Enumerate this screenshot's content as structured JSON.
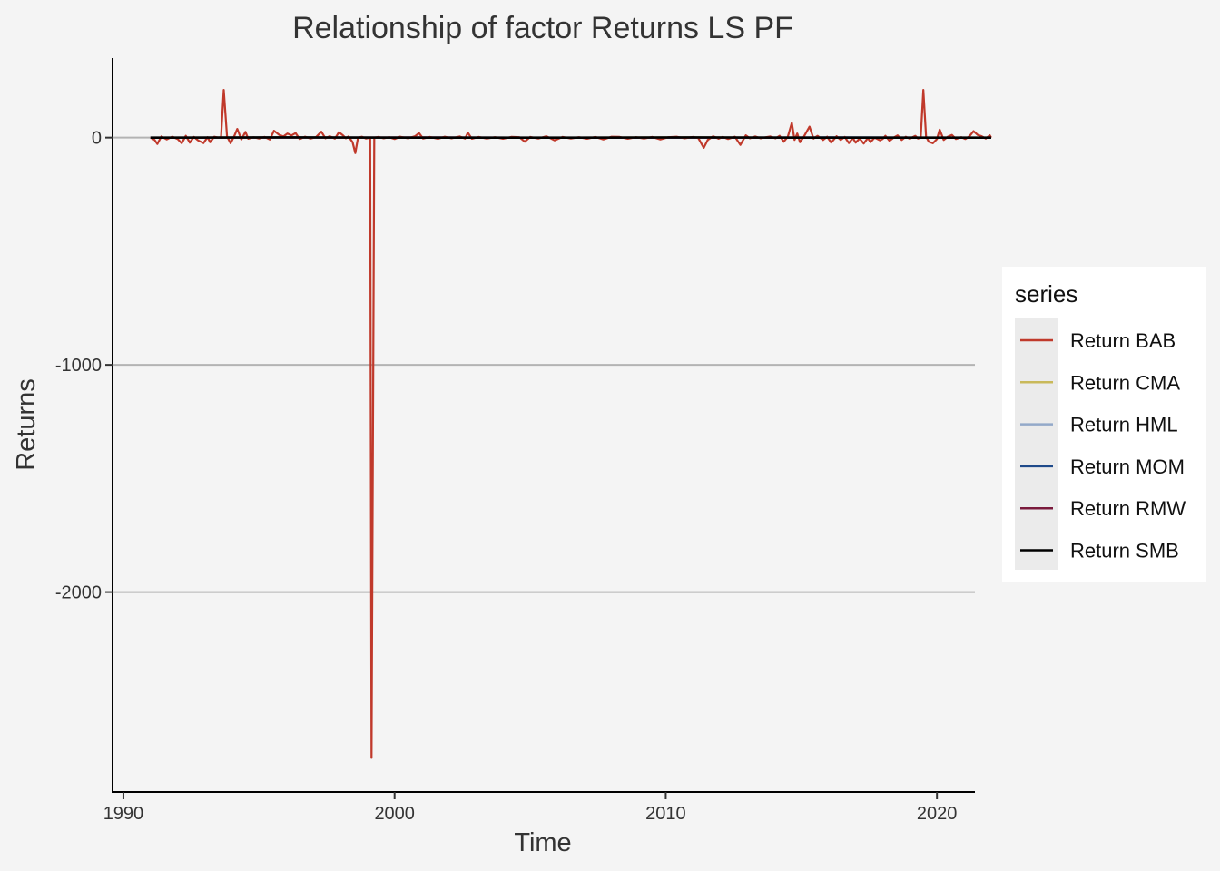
{
  "chart_data": {
    "type": "line",
    "title": "Relationship of factor Returns LS PF",
    "xlabel": "Time",
    "ylabel": "Returns",
    "xlim": [
      1989.6,
      2021.4
    ],
    "ylim": [
      -2880,
      350
    ],
    "x_ticks": [
      1990,
      2000,
      2010,
      2020
    ],
    "x_tick_labels": [
      "1990",
      "2000",
      "2010",
      "2020"
    ],
    "y_ticks": [
      0,
      -1000,
      -2000
    ],
    "y_tick_labels": [
      "0",
      "-1000",
      "-2000"
    ],
    "grid": "horizontal major",
    "legend": {
      "title": "series",
      "position": "right",
      "entries": [
        {
          "label": "Return BAB",
          "color": "#c0392b"
        },
        {
          "label": "Return CMA",
          "color": "#c9b95a"
        },
        {
          "label": "Return HML",
          "color": "#93a9c9"
        },
        {
          "label": "Return MOM",
          "color": "#1f4a8a"
        },
        {
          "label": "Return RMW",
          "color": "#7a1a3c"
        },
        {
          "label": "Return SMB",
          "color": "#000000"
        }
      ]
    },
    "series": [
      {
        "name": "Return BAB",
        "color": "#c0392b",
        "points": [
          [
            1991.0,
            0
          ],
          [
            1991.15,
            -10
          ],
          [
            1991.25,
            -28
          ],
          [
            1991.4,
            5
          ],
          [
            1991.6,
            -8
          ],
          [
            1991.8,
            4
          ],
          [
            1992.0,
            -6
          ],
          [
            1992.15,
            -25
          ],
          [
            1992.3,
            8
          ],
          [
            1992.45,
            -22
          ],
          [
            1992.6,
            3
          ],
          [
            1992.75,
            -12
          ],
          [
            1992.95,
            -24
          ],
          [
            1993.1,
            2
          ],
          [
            1993.2,
            -20
          ],
          [
            1993.35,
            4
          ],
          [
            1993.5,
            0
          ],
          [
            1993.6,
            2
          ],
          [
            1993.7,
            210
          ],
          [
            1993.82,
            5
          ],
          [
            1993.95,
            -25
          ],
          [
            1994.1,
            10
          ],
          [
            1994.2,
            38
          ],
          [
            1994.35,
            -8
          ],
          [
            1994.5,
            25
          ],
          [
            1994.6,
            -5
          ],
          [
            1994.8,
            2
          ],
          [
            1995.0,
            -4
          ],
          [
            1995.2,
            3
          ],
          [
            1995.4,
            -8
          ],
          [
            1995.55,
            30
          ],
          [
            1995.75,
            12
          ],
          [
            1995.9,
            5
          ],
          [
            1996.05,
            18
          ],
          [
            1996.2,
            10
          ],
          [
            1996.35,
            20
          ],
          [
            1996.5,
            -6
          ],
          [
            1996.7,
            4
          ],
          [
            1996.9,
            -4
          ],
          [
            1997.1,
            2
          ],
          [
            1997.3,
            26
          ],
          [
            1997.45,
            -3
          ],
          [
            1997.6,
            6
          ],
          [
            1997.8,
            -4
          ],
          [
            1997.95,
            24
          ],
          [
            1998.1,
            10
          ],
          [
            1998.2,
            -3
          ],
          [
            1998.3,
            5
          ],
          [
            1998.45,
            -20
          ],
          [
            1998.55,
            -68
          ],
          [
            1998.65,
            0
          ],
          [
            1998.8,
            4
          ],
          [
            1998.95,
            -4
          ],
          [
            1999.1,
            0
          ],
          [
            1999.15,
            -2730
          ],
          [
            1999.25,
            0
          ],
          [
            1999.4,
            3
          ],
          [
            1999.6,
            -3
          ],
          [
            1999.8,
            2
          ],
          [
            2000.0,
            -6
          ],
          [
            2000.2,
            4
          ],
          [
            2000.5,
            -3
          ],
          [
            2000.75,
            6
          ],
          [
            2000.9,
            20
          ],
          [
            2001.05,
            -4
          ],
          [
            2001.3,
            3
          ],
          [
            2001.6,
            -5
          ],
          [
            2001.85,
            4
          ],
          [
            2002.1,
            -3
          ],
          [
            2002.4,
            5
          ],
          [
            2002.6,
            -4
          ],
          [
            2002.7,
            22
          ],
          [
            2002.85,
            -5
          ],
          [
            2003.1,
            3
          ],
          [
            2003.4,
            -4
          ],
          [
            2003.7,
            2
          ],
          [
            2004.0,
            -5
          ],
          [
            2004.3,
            3
          ],
          [
            2004.6,
            2
          ],
          [
            2004.8,
            -18
          ],
          [
            2005.0,
            3
          ],
          [
            2005.3,
            -4
          ],
          [
            2005.6,
            6
          ],
          [
            2005.9,
            -12
          ],
          [
            2006.2,
            3
          ],
          [
            2006.5,
            -4
          ],
          [
            2006.8,
            2
          ],
          [
            2007.1,
            -5
          ],
          [
            2007.4,
            3
          ],
          [
            2007.7,
            -8
          ],
          [
            2008.0,
            4
          ],
          [
            2008.3,
            3
          ],
          [
            2008.6,
            -5
          ],
          [
            2008.9,
            2
          ],
          [
            2009.2,
            -4
          ],
          [
            2009.5,
            3
          ],
          [
            2009.8,
            -8
          ],
          [
            2010.1,
            2
          ],
          [
            2010.4,
            4
          ],
          [
            2010.7,
            -3
          ],
          [
            2011.0,
            3
          ],
          [
            2011.2,
            -2
          ],
          [
            2011.4,
            -45
          ],
          [
            2011.55,
            -10
          ],
          [
            2011.75,
            6
          ],
          [
            2011.95,
            -5
          ],
          [
            2012.1,
            3
          ],
          [
            2012.3,
            -6
          ],
          [
            2012.55,
            4
          ],
          [
            2012.75,
            -32
          ],
          [
            2012.95,
            10
          ],
          [
            2013.1,
            -3
          ],
          [
            2013.3,
            5
          ],
          [
            2013.5,
            -3
          ],
          [
            2013.7,
            2
          ],
          [
            2013.85,
            5
          ],
          [
            2014.05,
            -3
          ],
          [
            2014.2,
            8
          ],
          [
            2014.35,
            -18
          ],
          [
            2014.5,
            4
          ],
          [
            2014.65,
            65
          ],
          [
            2014.75,
            -10
          ],
          [
            2014.85,
            18
          ],
          [
            2014.95,
            -20
          ],
          [
            2015.1,
            6
          ],
          [
            2015.3,
            48
          ],
          [
            2015.45,
            -4
          ],
          [
            2015.6,
            8
          ],
          [
            2015.8,
            -10
          ],
          [
            2015.95,
            4
          ],
          [
            2016.1,
            -22
          ],
          [
            2016.3,
            6
          ],
          [
            2016.45,
            -10
          ],
          [
            2016.6,
            3
          ],
          [
            2016.75,
            -24
          ],
          [
            2016.9,
            -2
          ],
          [
            2017.0,
            -22
          ],
          [
            2017.15,
            -4
          ],
          [
            2017.3,
            -26
          ],
          [
            2017.45,
            -2
          ],
          [
            2017.55,
            -20
          ],
          [
            2017.7,
            0
          ],
          [
            2017.9,
            -12
          ],
          [
            2018.0,
            -6
          ],
          [
            2018.1,
            8
          ],
          [
            2018.25,
            -14
          ],
          [
            2018.4,
            0
          ],
          [
            2018.55,
            10
          ],
          [
            2018.7,
            -10
          ],
          [
            2018.85,
            4
          ],
          [
            2019.0,
            -5
          ],
          [
            2019.1,
            2
          ],
          [
            2019.2,
            8
          ],
          [
            2019.3,
            -4
          ],
          [
            2019.4,
            0
          ],
          [
            2019.5,
            210
          ],
          [
            2019.6,
            5
          ],
          [
            2019.7,
            -18
          ],
          [
            2019.85,
            -25
          ],
          [
            2020.0,
            -6
          ],
          [
            2020.1,
            35
          ],
          [
            2020.25,
            -10
          ],
          [
            2020.4,
            4
          ],
          [
            2020.55,
            12
          ],
          [
            2020.7,
            -6
          ],
          [
            2020.9,
            2
          ],
          [
            2021.05,
            -6
          ],
          [
            2021.2,
            6
          ],
          [
            2021.35,
            28
          ],
          [
            2021.5,
            12
          ],
          [
            2021.65,
            6
          ],
          [
            2021.8,
            -4
          ],
          [
            2021.95,
            10
          ],
          [
            2022.0,
            0
          ]
        ]
      },
      {
        "name": "Return CMA",
        "color": "#c9b95a",
        "points": [
          [
            1991.0,
            0
          ],
          [
            1996.0,
            1
          ],
          [
            2001.0,
            -1
          ],
          [
            2006.0,
            0
          ],
          [
            2011.0,
            1
          ],
          [
            2016.0,
            -1
          ],
          [
            2021.0,
            0
          ],
          [
            2022.0,
            0
          ]
        ]
      },
      {
        "name": "Return HML",
        "color": "#93a9c9",
        "points": [
          [
            1991.0,
            0
          ],
          [
            1996.0,
            -1
          ],
          [
            2001.0,
            1
          ],
          [
            2006.0,
            0
          ],
          [
            2011.0,
            -1
          ],
          [
            2016.0,
            1
          ],
          [
            2021.0,
            0
          ],
          [
            2022.0,
            0
          ]
        ]
      },
      {
        "name": "Return MOM",
        "color": "#1f4a8a",
        "points": [
          [
            1991.0,
            0
          ],
          [
            1996.0,
            1
          ],
          [
            2001.0,
            0
          ],
          [
            2006.0,
            -1
          ],
          [
            2011.0,
            0
          ],
          [
            2016.0,
            1
          ],
          [
            2021.0,
            0
          ],
          [
            2022.0,
            0
          ]
        ]
      },
      {
        "name": "Return RMW",
        "color": "#7a1a3c",
        "points": [
          [
            1991.0,
            0
          ],
          [
            1996.0,
            0
          ],
          [
            2001.0,
            1
          ],
          [
            2006.0,
            0
          ],
          [
            2011.0,
            0
          ],
          [
            2016.0,
            -1
          ],
          [
            2021.0,
            0
          ],
          [
            2022.0,
            0
          ]
        ]
      },
      {
        "name": "Return SMB",
        "color": "#000000",
        "points": [
          [
            1991.0,
            0
          ],
          [
            1996.0,
            1
          ],
          [
            2001.0,
            0
          ],
          [
            2006.0,
            0
          ],
          [
            2011.0,
            1
          ],
          [
            2016.0,
            0
          ],
          [
            2021.0,
            0
          ],
          [
            2022.0,
            0
          ]
        ]
      }
    ]
  }
}
